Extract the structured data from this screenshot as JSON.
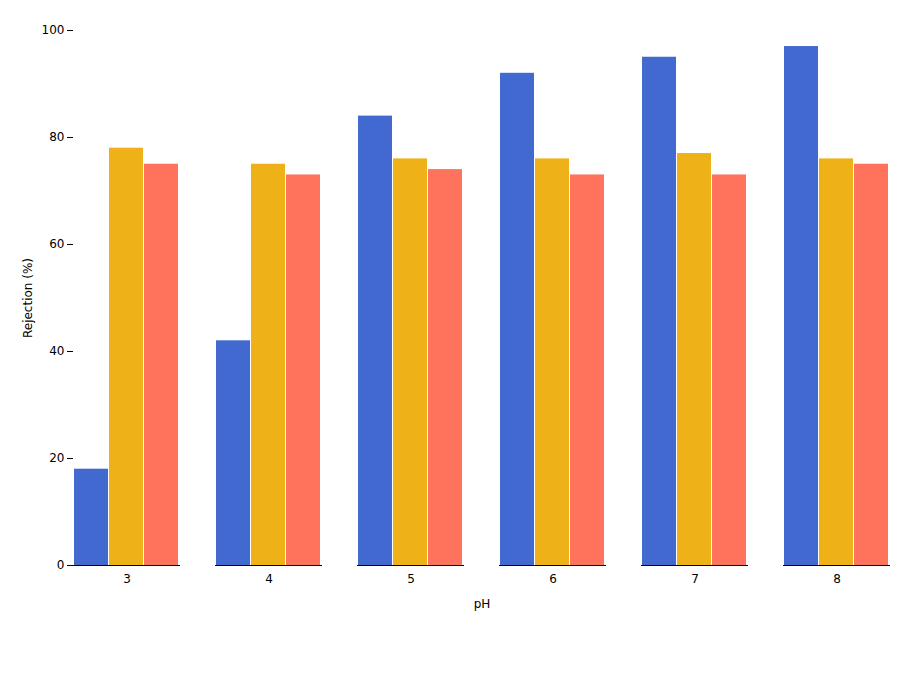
{
  "chart_data": {
    "type": "bar",
    "xlabel": "pH",
    "ylabel": "Rejection (%)",
    "categories": [
      3,
      4,
      5,
      6,
      7,
      8
    ],
    "series": [
      {
        "values": [
          18,
          42,
          84,
          92,
          95,
          97
        ]
      },
      {
        "values": [
          78,
          75,
          76,
          76,
          77,
          76
        ]
      },
      {
        "values": [
          75,
          73,
          74,
          73,
          73,
          75
        ]
      }
    ],
    "ylim": [
      0,
      100
    ],
    "yticks": [
      0,
      20,
      40,
      60,
      80,
      100
    ],
    "grid": false
  }
}
